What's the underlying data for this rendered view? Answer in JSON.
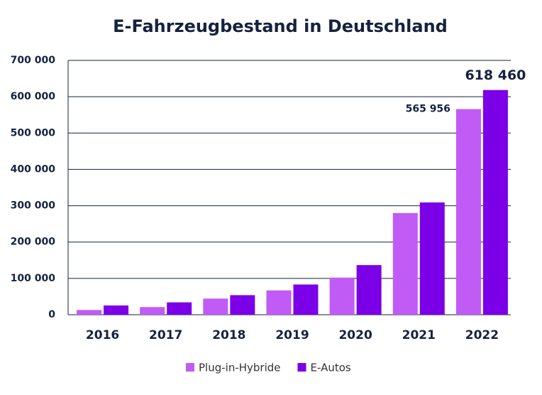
{
  "chart_data": {
    "type": "bar",
    "title": "E-Fahrzeugbestand in Deutschland",
    "categories": [
      "2016",
      "2017",
      "2018",
      "2019",
      "2020",
      "2021",
      "2022"
    ],
    "series": [
      {
        "name": "Plug-in-Hybride",
        "color": "#c05cf5",
        "values": [
          13000,
          20975,
          44419,
          66997,
          102175,
          279861,
          565956
        ],
        "value_labels": [
          null,
          null,
          null,
          null,
          null,
          null,
          "565 956"
        ]
      },
      {
        "name": "E-Autos",
        "color": "#7b00e8",
        "values": [
          25502,
          34022,
          53861,
          83175,
          136617,
          309083,
          618460
        ],
        "value_labels": [
          null,
          null,
          null,
          null,
          null,
          null,
          "618 460"
        ]
      }
    ],
    "ylim": [
      0,
      700000
    ],
    "yticks": [
      0,
      {
        "value": 100000,
        "label": "100 000"
      },
      {
        "value": 200000,
        "label": "200 000"
      },
      {
        "value": 300000,
        "label": "300 000"
      },
      {
        "value": 400000,
        "label": "400 000"
      },
      {
        "value": 500000,
        "label": "500 000"
      },
      {
        "value": 600000,
        "label": "600 000"
      },
      {
        "value": 700000,
        "label": "700 000"
      }
    ],
    "grid": true,
    "legend": "bottom"
  }
}
